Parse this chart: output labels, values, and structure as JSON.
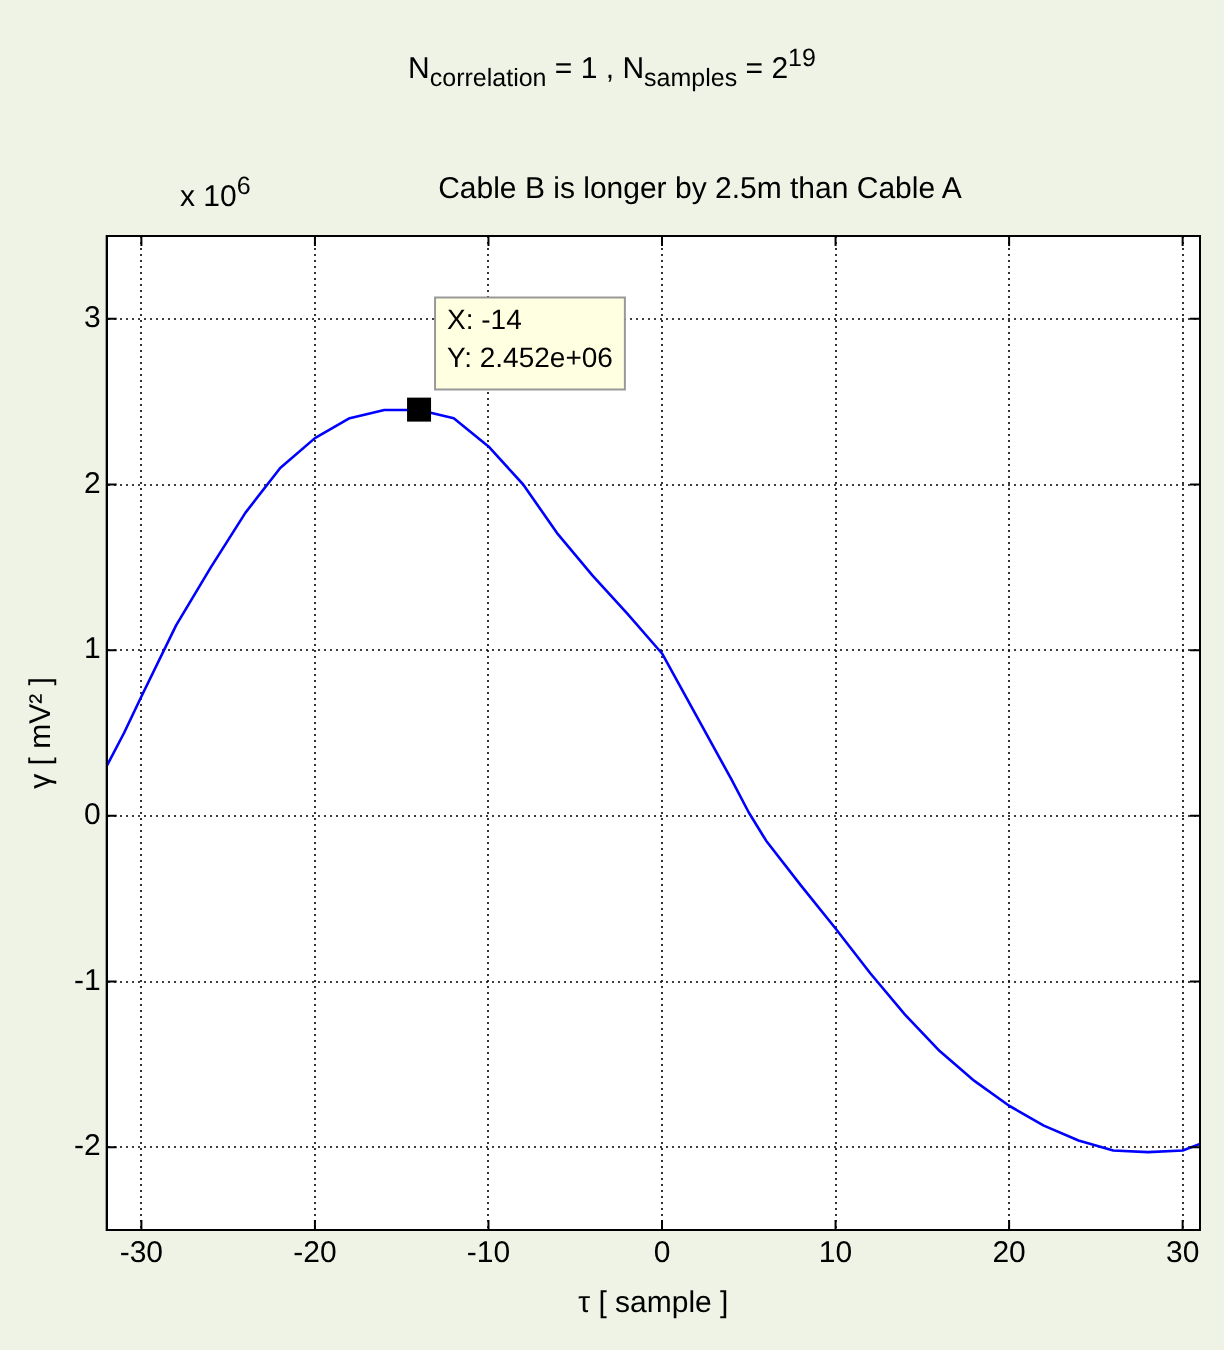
{
  "chart_data": {
    "type": "line",
    "title": "N$_{correlation}$ = 1  ,  N$_{samples}$ = 2$^{19}$",
    "subtitle": "Cable B is longer by 2.5m than Cable A",
    "xlabel": "τ [ sample ]",
    "ylabel": "γ [ mV² ]",
    "annotations": [
      "x 10$^{6}$",
      {
        "text": "X: -14\nY: 2.452e+06",
        "x": -14,
        "y": 2.452
      }
    ],
    "x": [
      -32,
      -31,
      -30,
      -28,
      -26,
      -24,
      -22,
      -20,
      -18,
      -16,
      -14,
      -12,
      -10,
      -8,
      -6,
      -4,
      -2,
      0,
      2,
      4,
      5,
      6,
      8,
      10,
      12,
      14,
      16,
      18,
      20,
      22,
      24,
      26,
      28,
      30,
      31
    ],
    "series": [
      {
        "color": "#0000ff",
        "values": [
          0.3,
          0.5,
          0.72,
          1.15,
          1.5,
          1.83,
          2.1,
          2.28,
          2.4,
          2.45,
          2.45,
          2.4,
          2.23,
          2.0,
          1.7,
          1.45,
          1.22,
          0.98,
          0.6,
          0.22,
          0.02,
          -0.15,
          -0.42,
          -0.68,
          -0.95,
          -1.2,
          -1.42,
          -1.6,
          -1.75,
          -1.87,
          -1.96,
          -2.02,
          -2.03,
          -2.02,
          -1.98
        ]
      }
    ],
    "xlim": [
      -32,
      31
    ],
    "ylim": [
      -2.5,
      3.5
    ],
    "xticks": [
      -30,
      -20,
      -10,
      0,
      10,
      20,
      30
    ],
    "yticks": [
      -2,
      -1,
      0,
      1,
      2,
      3
    ],
    "grid": true,
    "legend": false,
    "marker": "none",
    "line_style": "solid"
  }
}
